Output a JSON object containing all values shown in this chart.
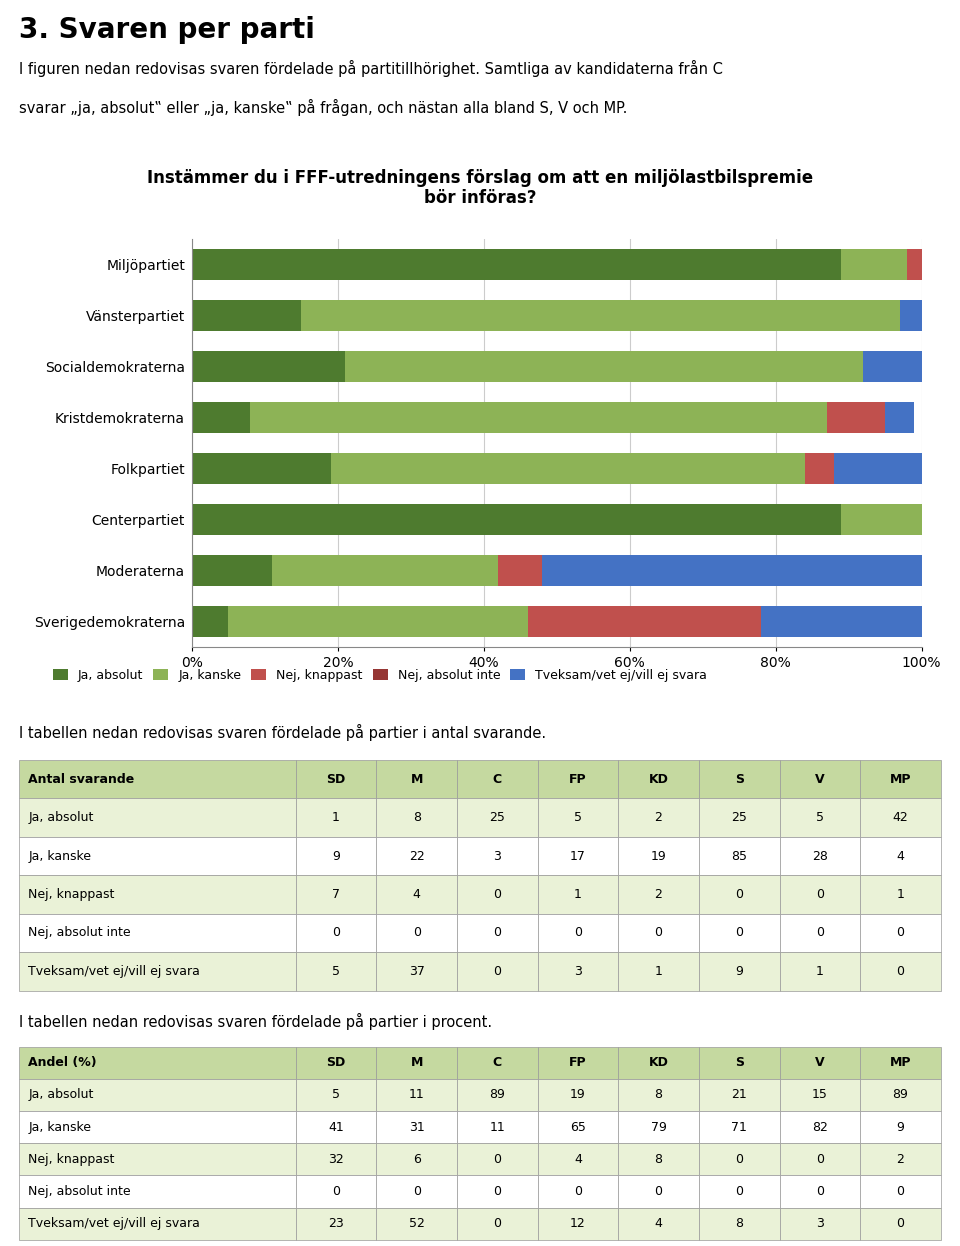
{
  "title": "Instämmer du i FFF-utredningens förslag om att en miljölastbilspremie\nbör införas?",
  "heading": "3. Svaren per parti",
  "intro_line1": "I figuren nedan redovisas svaren fördelade på partitillhörighet. Samtliga av kandidaterna från C",
  "intro_line2": "svarar „ja, absolut‟ eller „ja, kanske‟ på frågan, och nästan alla bland S, V och MP.",
  "parties": [
    "Miljöpartiet",
    "Vänsterpartiet",
    "Socialdemokraterna",
    "Kristdemokraterna",
    "Folkpartiet",
    "Centerpartiet",
    "Moderaterna",
    "Sverigedemokraterna"
  ],
  "categories": [
    "Ja, absolut",
    "Ja, kanske",
    "Nej, knappast",
    "Nej, absolut inte",
    "Tveksam/vet ej/vill ej svara"
  ],
  "colors": [
    "#4e7b2f",
    "#8db356",
    "#c0504d",
    "#963634",
    "#4472c4"
  ],
  "data_pct": {
    "Miljöpartiet": [
      89,
      9,
      2,
      0,
      0
    ],
    "Vänsterpartiet": [
      15,
      82,
      0,
      0,
      3
    ],
    "Socialdemokraterna": [
      21,
      71,
      0,
      0,
      8
    ],
    "Kristdemokraterna": [
      8,
      79,
      8,
      0,
      4
    ],
    "Folkpartiet": [
      19,
      65,
      4,
      0,
      12
    ],
    "Centerpartiet": [
      89,
      11,
      0,
      0,
      0
    ],
    "Moderaterna": [
      11,
      31,
      6,
      0,
      52
    ],
    "Sverigedemokraterna": [
      5,
      41,
      32,
      0,
      23
    ]
  },
  "table1_title": "I tabellen nedan redovisas svaren fördelade på partier i antal svarande.",
  "table2_title": "I tabellen nedan redovisas svaren fördelade på partier i procent.",
  "table_cols": [
    "Antal svarande",
    "SD",
    "M",
    "C",
    "FP",
    "KD",
    "S",
    "V",
    "MP"
  ],
  "table1_rows": [
    [
      "Ja, absolut",
      "1",
      "8",
      "25",
      "5",
      "2",
      "25",
      "5",
      "42"
    ],
    [
      "Ja, kanske",
      "9",
      "22",
      "3",
      "17",
      "19",
      "85",
      "28",
      "4"
    ],
    [
      "Nej, knappast",
      "7",
      "4",
      "0",
      "1",
      "2",
      "0",
      "0",
      "1"
    ],
    [
      "Nej, absolut inte",
      "0",
      "0",
      "0",
      "0",
      "0",
      "0",
      "0",
      "0"
    ],
    [
      "Tveksam/vet ej/vill ej svara",
      "5",
      "37",
      "0",
      "3",
      "1",
      "9",
      "1",
      "0"
    ]
  ],
  "table2_cols": [
    "Andel (%)",
    "SD",
    "M",
    "C",
    "FP",
    "KD",
    "S",
    "V",
    "MP"
  ],
  "table2_rows": [
    [
      "Ja, absolut",
      "5",
      "11",
      "89",
      "19",
      "8",
      "21",
      "15",
      "89"
    ],
    [
      "Ja, kanske",
      "41",
      "31",
      "11",
      "65",
      "79",
      "71",
      "82",
      "9"
    ],
    [
      "Nej, knappast",
      "32",
      "6",
      "0",
      "4",
      "8",
      "0",
      "0",
      "2"
    ],
    [
      "Nej, absolut inte",
      "0",
      "0",
      "0",
      "0",
      "0",
      "0",
      "0",
      "0"
    ],
    [
      "Tveksam/vet ej/vill ej svara",
      "23",
      "52",
      "0",
      "12",
      "4",
      "8",
      "3",
      "0"
    ]
  ],
  "table_bg_header": "#c5d9a0",
  "table_bg_odd": "#eaf2d7",
  "table_bg_even": "#ffffff",
  "chart_bg": "#ffffff",
  "chart_border": "#aaaaaa"
}
